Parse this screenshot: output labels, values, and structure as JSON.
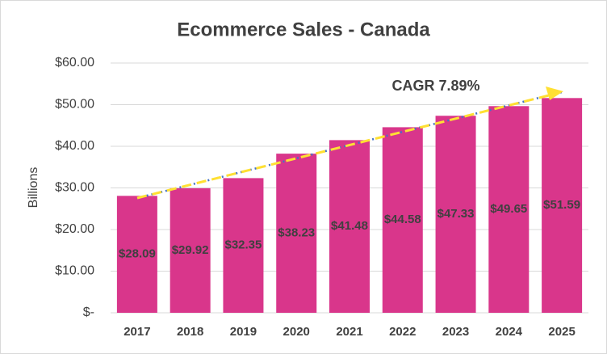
{
  "chart_data": {
    "type": "bar",
    "title": "Ecommerce Sales - Canada",
    "y_label": "Billions",
    "annotation": "CAGR 7.89%",
    "categories": [
      "2017",
      "2018",
      "2019",
      "2020",
      "2021",
      "2022",
      "2023",
      "2024",
      "2025"
    ],
    "values": [
      28.09,
      29.92,
      32.35,
      38.23,
      41.48,
      44.58,
      47.33,
      49.65,
      51.59
    ],
    "value_labels": [
      "$28.09",
      "$29.92",
      "$32.35",
      "$38.23",
      "$41.48",
      "$44.58",
      "$47.33",
      "$49.65",
      "$51.59"
    ],
    "color": "#d9368b",
    "ylim": [
      0,
      60
    ],
    "yticks": [
      {
        "value": 0,
        "label": "$-"
      },
      {
        "value": 10,
        "label": "$10.00"
      },
      {
        "value": 20,
        "label": "$20.00"
      },
      {
        "value": 30,
        "label": "$30.00"
      },
      {
        "value": 40,
        "label": "$40.00"
      },
      {
        "value": 50,
        "label": "$50.00"
      },
      {
        "value": 60,
        "label": "$60.00"
      }
    ],
    "grid": true
  }
}
